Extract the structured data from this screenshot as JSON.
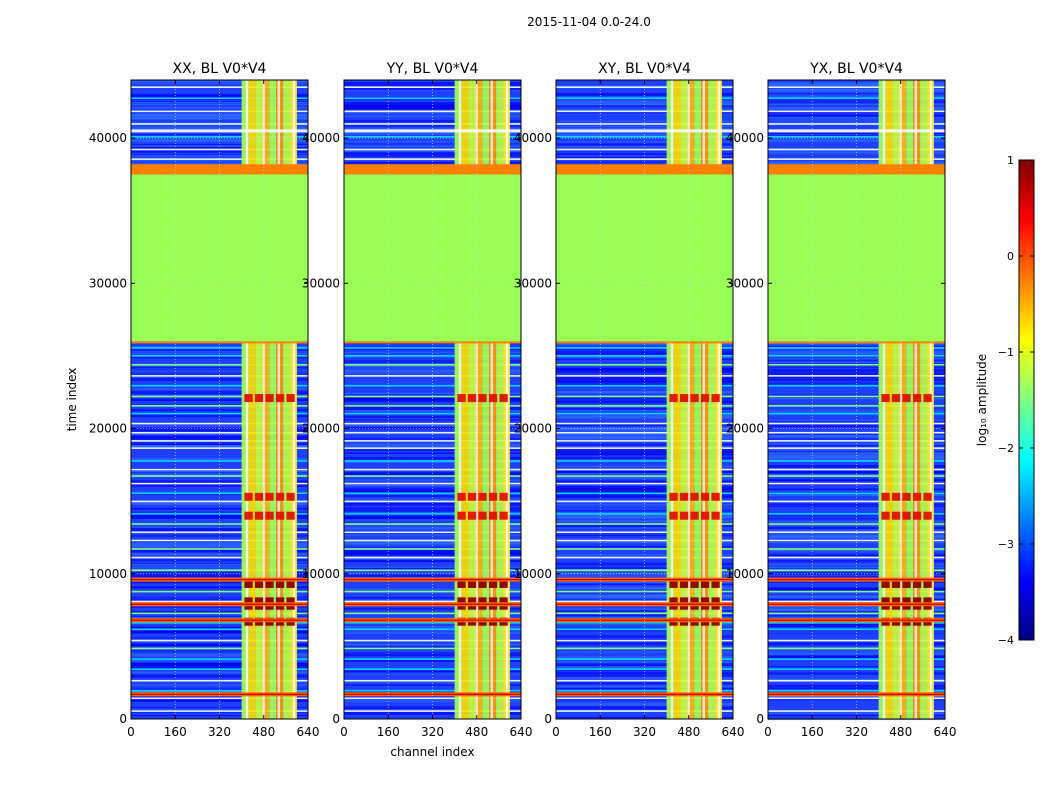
{
  "figure_title": "2015-11-04 0.0-24.0",
  "colors": {
    "background": "#ffffff",
    "frame": "#000000",
    "grid": "#d8d8d8",
    "flagged_band": "#99ff55",
    "flag_edge": "#ff7f00"
  },
  "chart_data": [
    {
      "type": "heatmap",
      "title": "XX, BL V0*V4",
      "xlabel": "",
      "ylabel": "time index",
      "xlim": [
        0,
        640
      ],
      "ylim": [
        0,
        44000
      ],
      "xticks": [
        "0",
        "160",
        "320",
        "480",
        "640"
      ],
      "yticks": [
        "0",
        "10000",
        "20000",
        "30000",
        "40000"
      ],
      "grid": true,
      "rfi_channel_range": [
        400,
        600
      ],
      "flagged_time_range": [
        26000,
        37500
      ]
    },
    {
      "type": "heatmap",
      "title": "YY, BL V0*V4",
      "xlabel": "channel index",
      "ylabel": "",
      "xlim": [
        0,
        640
      ],
      "ylim": [
        0,
        44000
      ],
      "xticks": [
        "0",
        "160",
        "320",
        "480",
        "640"
      ],
      "yticks": [
        "0",
        "10000",
        "20000",
        "30000",
        "40000"
      ],
      "grid": true,
      "rfi_channel_range": [
        400,
        600
      ],
      "flagged_time_range": [
        26000,
        37500
      ]
    },
    {
      "type": "heatmap",
      "title": "XY, BL V0*V4",
      "xlabel": "",
      "ylabel": "",
      "xlim": [
        0,
        640
      ],
      "ylim": [
        0,
        44000
      ],
      "xticks": [
        "0",
        "160",
        "320",
        "480",
        "640"
      ],
      "yticks": [
        "0",
        "10000",
        "20000",
        "30000",
        "40000"
      ],
      "grid": true,
      "rfi_channel_range": [
        400,
        600
      ],
      "flagged_time_range": [
        26000,
        37500
      ]
    },
    {
      "type": "heatmap",
      "title": "YX, BL V0*V4",
      "xlabel": "",
      "ylabel": "",
      "xlim": [
        0,
        640
      ],
      "ylim": [
        0,
        44000
      ],
      "xticks": [
        "0",
        "160",
        "320",
        "480",
        "640"
      ],
      "yticks": [
        "0",
        "10000",
        "20000",
        "30000",
        "40000"
      ],
      "grid": true,
      "rfi_channel_range": [
        400,
        600
      ],
      "flagged_time_range": [
        26000,
        37500
      ]
    }
  ],
  "colorbar": {
    "label": "log₁₀ amplitude",
    "range": [
      -4,
      1
    ],
    "ticks": [
      "1",
      "0",
      "−1",
      "−2",
      "−3",
      "−4"
    ],
    "colormap": [
      "#00007f",
      "#0000ff",
      "#007fff",
      "#00ffff",
      "#7fff7f",
      "#ffff00",
      "#ff7f00",
      "#ff0000",
      "#7f0000"
    ]
  }
}
